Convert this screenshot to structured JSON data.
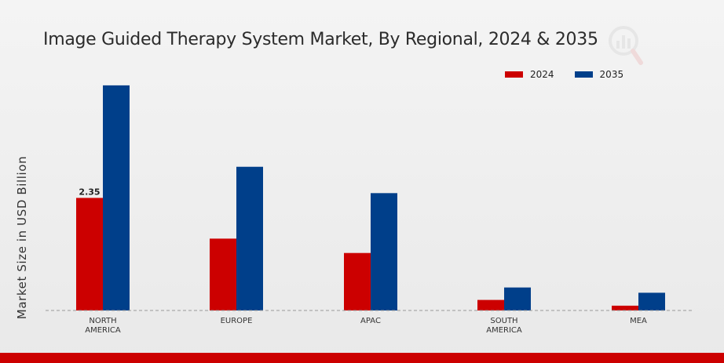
{
  "chart_data": {
    "type": "bar",
    "title": "Image Guided Therapy System Market, By Regional, 2024 & 2035",
    "ylabel": "Market Size in USD Billion",
    "xlabel": "",
    "categories": [
      [
        "NORTH",
        "AMERICA"
      ],
      [
        "EUROPE"
      ],
      [
        "APAC"
      ],
      [
        "SOUTH",
        "AMERICA"
      ],
      [
        "MEA"
      ]
    ],
    "series": [
      {
        "name": "2024",
        "color": "#cc0000",
        "values": [
          2.35,
          1.5,
          1.2,
          0.22,
          0.1
        ]
      },
      {
        "name": "2035",
        "color": "#003f8a",
        "values": [
          4.7,
          3.0,
          2.45,
          0.48,
          0.37
        ]
      }
    ],
    "data_labels": [
      {
        "series": 0,
        "index": 0,
        "text": "2.35"
      }
    ],
    "ylim": [
      0,
      5.5
    ],
    "grid": false,
    "legend_position": "top-right",
    "baseline_style": "dashed"
  },
  "colors": {
    "accent_bar": "#cc0000"
  }
}
